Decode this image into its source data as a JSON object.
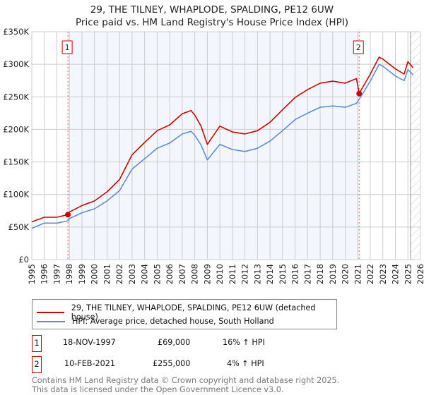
{
  "title": "29, THE TILNEY, WHAPLODE, SPALDING, PE12 6UW",
  "subtitle": "Price paid vs. HM Land Registry's House Price Index (HPI)",
  "chart_data": {
    "type": "line",
    "title": "29, THE TILNEY, WHAPLODE, SPALDING, PE12 6UW",
    "subtitle": "Price paid vs. HM Land Registry's House Price Index (HPI)",
    "xlim": [
      1995,
      2026
    ],
    "ylim": [
      0,
      350000
    ],
    "x_ticks": [
      "1995",
      "1996",
      "1997",
      "1998",
      "1999",
      "2000",
      "2001",
      "2002",
      "2003",
      "2004",
      "2005",
      "2006",
      "2007",
      "2008",
      "2009",
      "2010",
      "2011",
      "2012",
      "2013",
      "2014",
      "2015",
      "2016",
      "2017",
      "2018",
      "2019",
      "2020",
      "2021",
      "2022",
      "2023",
      "2024",
      "2025",
      "2026"
    ],
    "y_ticks": [
      {
        "v": 0,
        "label": "£0"
      },
      {
        "v": 50000,
        "label": "£50K"
      },
      {
        "v": 100000,
        "label": "£100K"
      },
      {
        "v": 150000,
        "label": "£150K"
      },
      {
        "v": 200000,
        "label": "£200K"
      },
      {
        "v": 250000,
        "label": "£250K"
      },
      {
        "v": 300000,
        "label": "£300K"
      },
      {
        "v": 350000,
        "label": "£350K"
      }
    ],
    "grid": true,
    "shaded_range": [
      1997.88,
      2021.11
    ],
    "future_hatch_from": 2025.2,
    "series": [
      {
        "name": "29, THE TILNEY, WHAPLODE, SPALDING, PE12 6UW (detached house)",
        "color": "#cc0000",
        "x": [
          1995,
          1996,
          1997,
          1997.88,
          1998,
          1999,
          2000,
          2001,
          2002,
          2003,
          2004,
          2005,
          2006,
          2007,
          2007.7,
          2008,
          2008.5,
          2009,
          2010,
          2011,
          2012,
          2013,
          2014,
          2015,
          2016,
          2017,
          2018,
          2019,
          2020,
          2020.9,
          2021.11,
          2022,
          2022.7,
          2023,
          2024,
          2024.7,
          2025,
          2025.4
        ],
        "y": [
          58000,
          65000,
          65000,
          69000,
          73000,
          83000,
          90000,
          104000,
          123000,
          161000,
          180000,
          198000,
          207000,
          224000,
          229000,
          222000,
          205000,
          177000,
          205000,
          196000,
          193000,
          198000,
          211000,
          230000,
          249000,
          261000,
          271000,
          274000,
          271000,
          278000,
          255000,
          285000,
          311000,
          308000,
          293000,
          285000,
          304000,
          295000
        ]
      },
      {
        "name": "HPI: Average price, detached house, South Holland",
        "color": "#5b8fd0",
        "x": [
          1995,
          1996,
          1997,
          1997.88,
          1998,
          1999,
          2000,
          2001,
          2002,
          2003,
          2004,
          2005,
          2006,
          2007,
          2007.7,
          2008,
          2008.5,
          2009,
          2010,
          2011,
          2012,
          2013,
          2014,
          2015,
          2016,
          2017,
          2018,
          2019,
          2020,
          2020.9,
          2021.11,
          2022,
          2022.7,
          2023,
          2024,
          2024.7,
          2025,
          2025.4
        ],
        "y": [
          48000,
          56000,
          56000,
          59500,
          63000,
          72000,
          78000,
          90000,
          106000,
          139000,
          155000,
          171000,
          179000,
          193000,
          197000,
          191000,
          176000,
          153000,
          177000,
          169000,
          166000,
          171000,
          182000,
          198000,
          215000,
          225000,
          234000,
          236000,
          234000,
          240000,
          246000,
          274000,
          300000,
          297000,
          282000,
          275000,
          292000,
          284000
        ]
      }
    ],
    "sales": [
      {
        "id": "1",
        "x": 1997.88,
        "y": 69000
      },
      {
        "id": "2",
        "x": 2021.11,
        "y": 255000
      }
    ]
  },
  "legend": {
    "property": "29, THE TILNEY, WHAPLODE, SPALDING, PE12 6UW (detached house)",
    "hpi": "HPI: Average price, detached house, South Holland"
  },
  "transactions": [
    {
      "id": "1",
      "date": "18-NOV-1997",
      "price": "£69,000",
      "hpi": "16% ↑ HPI"
    },
    {
      "id": "2",
      "date": "10-FEB-2021",
      "price": "£255,000",
      "hpi": "4% ↑ HPI"
    }
  ],
  "footer": {
    "line1": "Contains HM Land Registry data © Crown copyright and database right 2025.",
    "line2": "This data is licensed under the Open Government Licence v3.0."
  },
  "colors": {
    "property": "#cc0000",
    "hpi": "#5b8fd0",
    "shade": "#f3f6fd",
    "marker_border": "#cc0000"
  }
}
